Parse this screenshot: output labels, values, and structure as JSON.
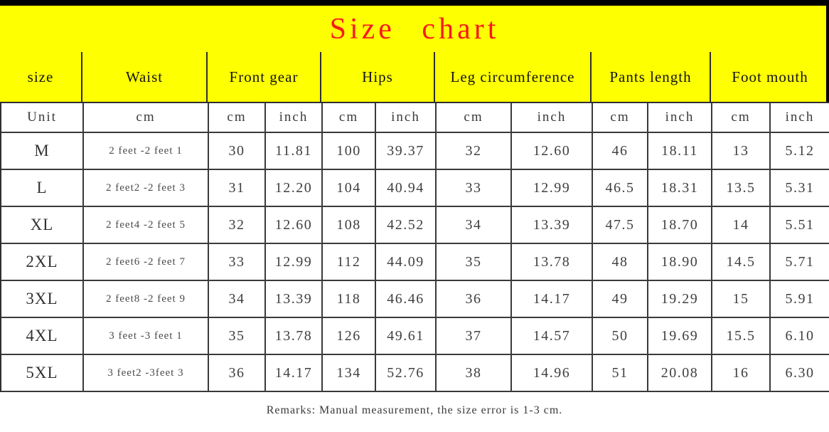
{
  "title": {
    "text": "Size chart",
    "color": "#f71b1b",
    "background": "#feff00"
  },
  "table": {
    "groups": [
      {
        "label": "size"
      },
      {
        "label": "Waist"
      },
      {
        "label": "Front gear"
      },
      {
        "label": "Hips"
      },
      {
        "label": "Leg circumference"
      },
      {
        "label": "Pants length"
      },
      {
        "label": "Foot mouth"
      }
    ],
    "unit_row": [
      "Unit",
      "cm",
      "cm",
      "inch",
      "cm",
      "inch",
      "cm",
      "inch",
      "cm",
      "inch",
      "cm",
      "inch"
    ],
    "rows": [
      {
        "size": "M",
        "cells": [
          "2 feet -2 feet 1",
          "30",
          "11.81",
          "100",
          "39.37",
          "32",
          "12.60",
          "46",
          "18.11",
          "13",
          "5.12"
        ]
      },
      {
        "size": "L",
        "cells": [
          "2 feet2 -2 feet 3",
          "31",
          "12.20",
          "104",
          "40.94",
          "33",
          "12.99",
          "46.5",
          "18.31",
          "13.5",
          "5.31"
        ]
      },
      {
        "size": "XL",
        "cells": [
          "2 feet4 -2 feet 5",
          "32",
          "12.60",
          "108",
          "42.52",
          "34",
          "13.39",
          "47.5",
          "18.70",
          "14",
          "5.51"
        ]
      },
      {
        "size": "2XL",
        "cells": [
          "2 feet6 -2 feet 7",
          "33",
          "12.99",
          "112",
          "44.09",
          "35",
          "13.78",
          "48",
          "18.90",
          "14.5",
          "5.71"
        ]
      },
      {
        "size": "3XL",
        "cells": [
          "2 feet8 -2 feet 9",
          "34",
          "13.39",
          "118",
          "46.46",
          "36",
          "14.17",
          "49",
          "19.29",
          "15",
          "5.91"
        ]
      },
      {
        "size": "4XL",
        "cells": [
          "3 feet -3 feet 1",
          "35",
          "13.78",
          "126",
          "49.61",
          "37",
          "14.57",
          "50",
          "19.69",
          "15.5",
          "6.10"
        ]
      },
      {
        "size": "5XL",
        "cells": [
          "3 feet2 -3feet 3",
          "36",
          "14.17",
          "134",
          "52.76",
          "38",
          "14.96",
          "51",
          "20.08",
          "16",
          "6.30"
        ]
      }
    ]
  },
  "footer": {
    "remark": "Remarks: Manual measurement, the size error is 1-3 cm."
  }
}
